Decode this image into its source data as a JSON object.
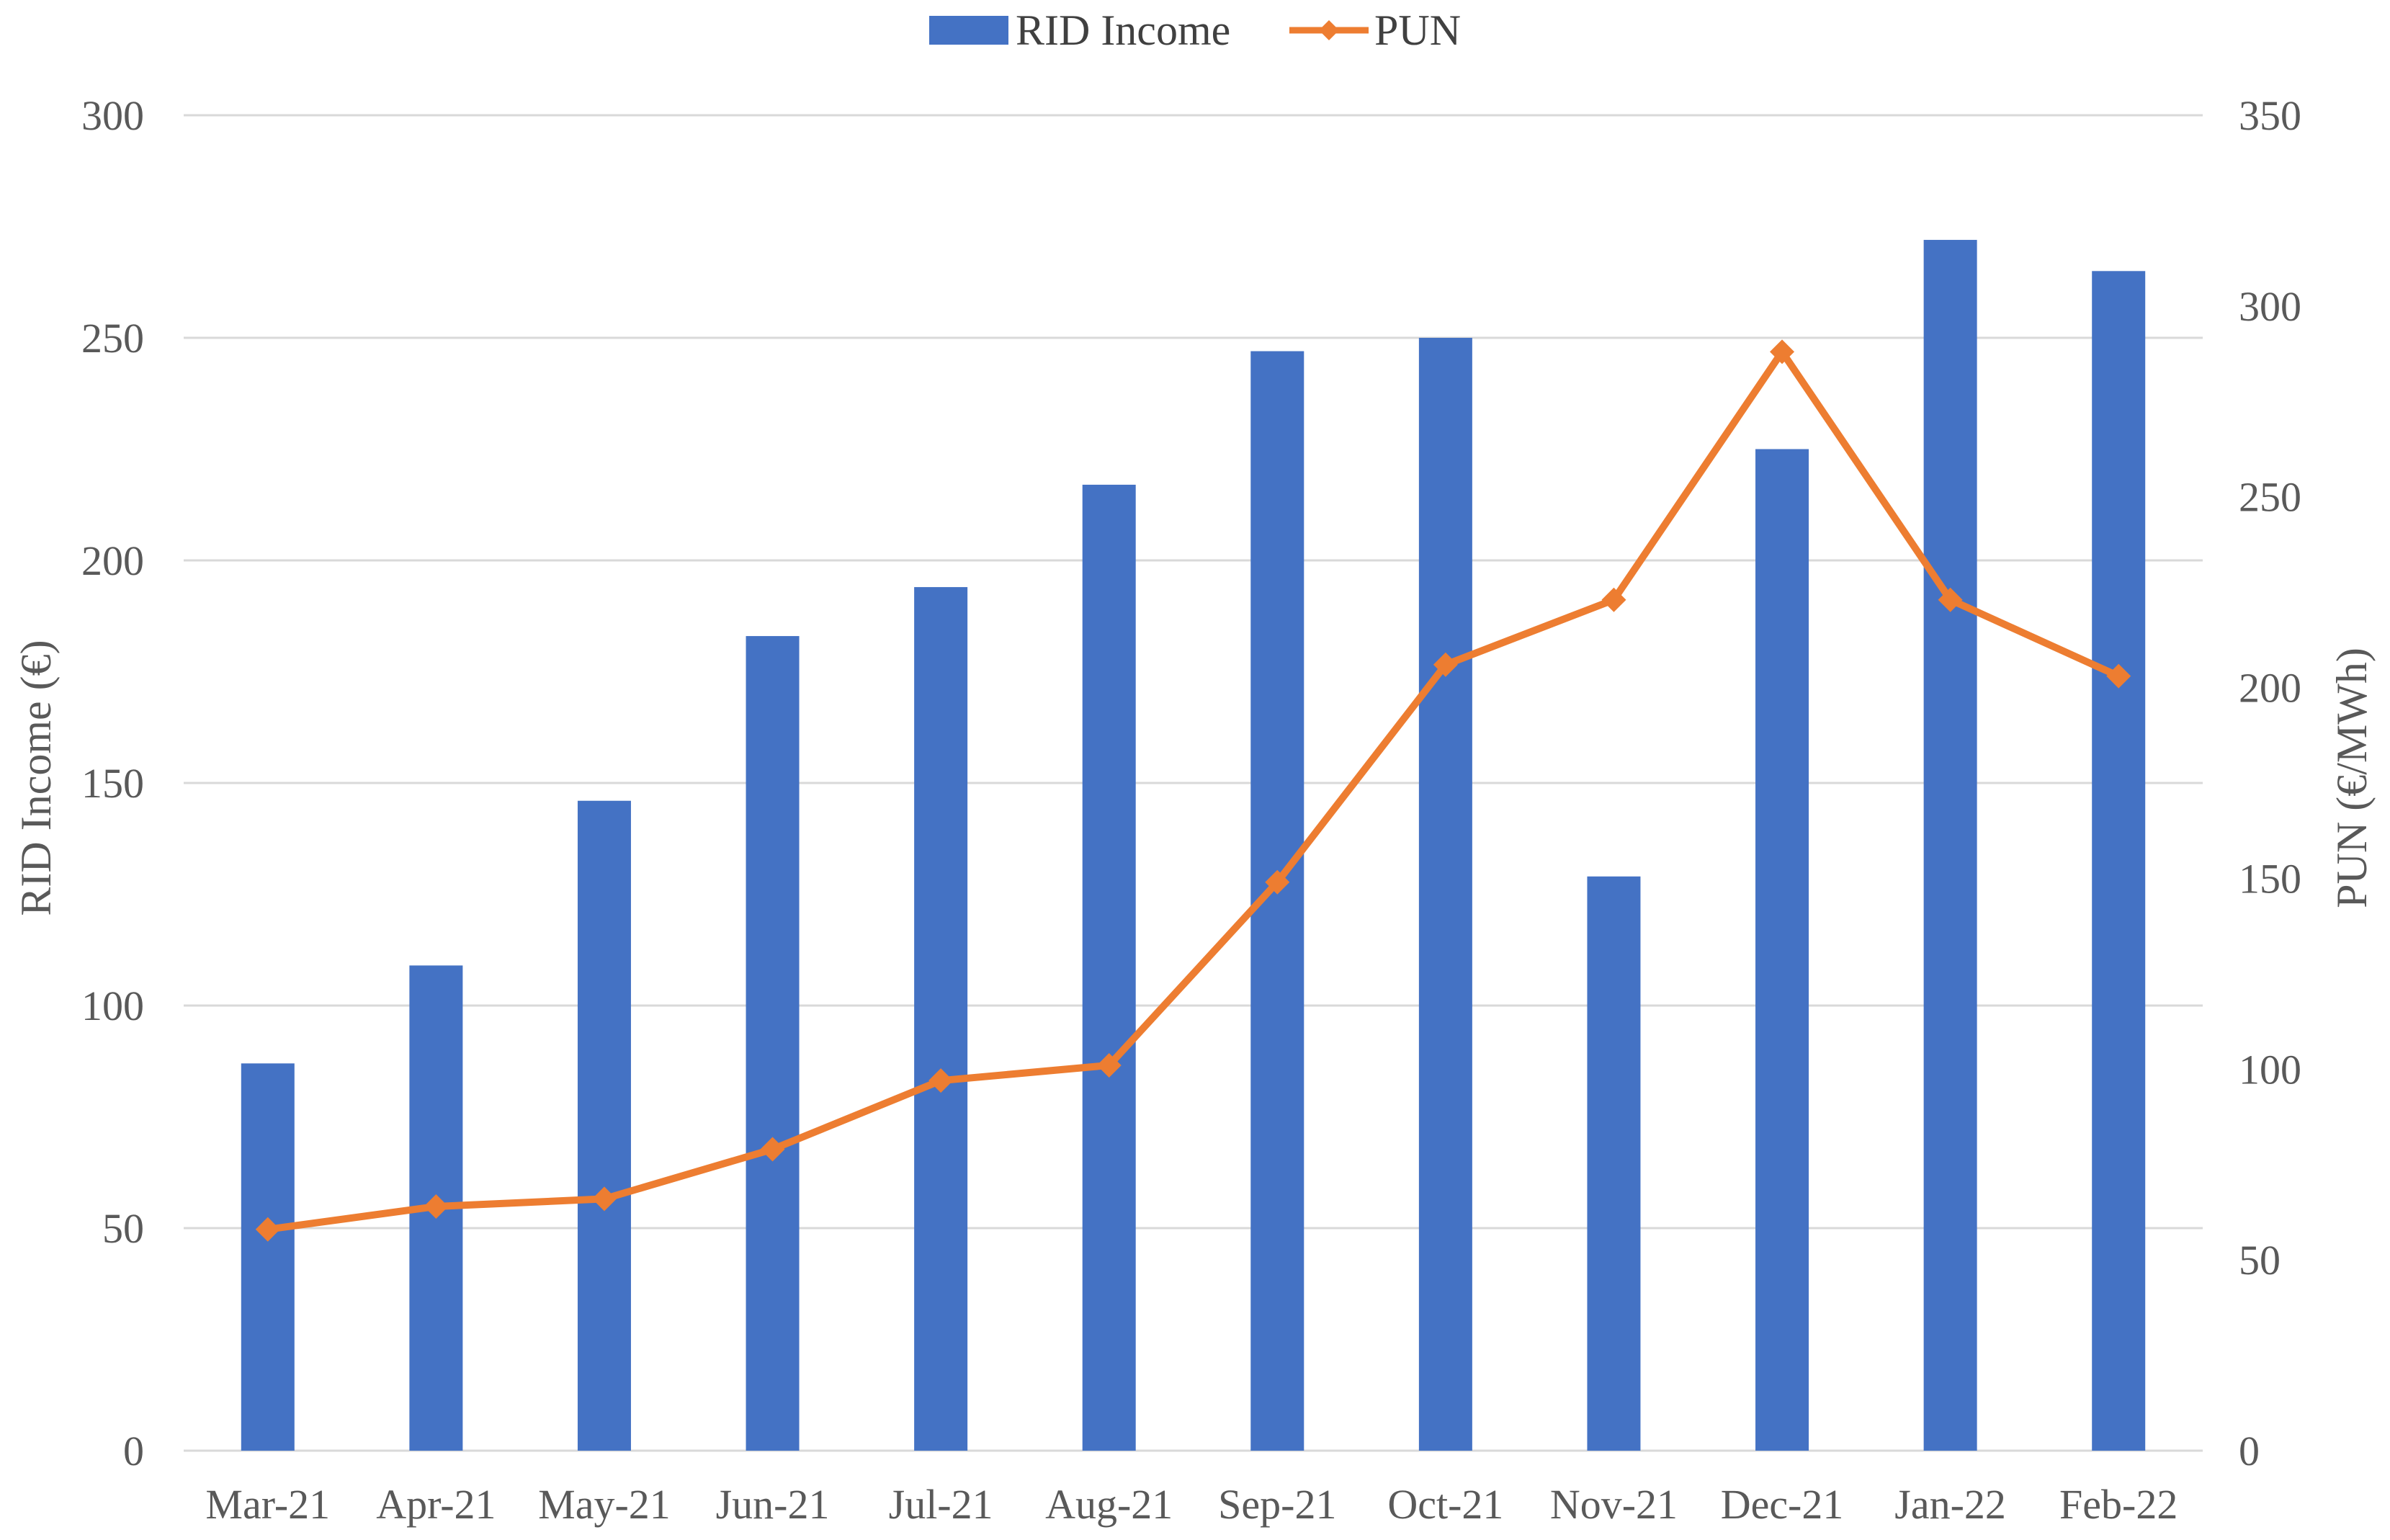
{
  "chart_data": {
    "type": "bar",
    "categories": [
      "Mar-21",
      "Apr-21",
      "May-21",
      "Jun-21",
      "Jul-21",
      "Aug-21",
      "Sep-21",
      "Oct-21",
      "Nov-21",
      "Dec-21",
      "Jan-22",
      "Feb-22"
    ],
    "series": [
      {
        "name": "RID Income",
        "type": "bar",
        "axis": "left",
        "color": "#4472C4",
        "values": [
          87,
          109,
          146,
          183,
          194,
          217,
          247,
          250,
          129,
          225,
          272,
          265
        ]
      },
      {
        "name": "PUN",
        "type": "line",
        "axis": "right",
        "color": "#ED7D31",
        "marker": "diamond",
        "values": [
          58,
          64,
          66,
          79,
          97,
          101,
          149,
          206,
          223,
          288,
          223,
          203
        ]
      }
    ],
    "left_axis": {
      "label": "RID Income (€)",
      "min": 0,
      "max": 300,
      "ticks": [
        0,
        50,
        100,
        150,
        200,
        250,
        300
      ]
    },
    "right_axis": {
      "label": "PUN (€/MWh)",
      "min": 0,
      "max": 350,
      "ticks": [
        0,
        50,
        100,
        150,
        200,
        250,
        300,
        350
      ]
    },
    "grid": true,
    "legend_position": "top-center"
  }
}
